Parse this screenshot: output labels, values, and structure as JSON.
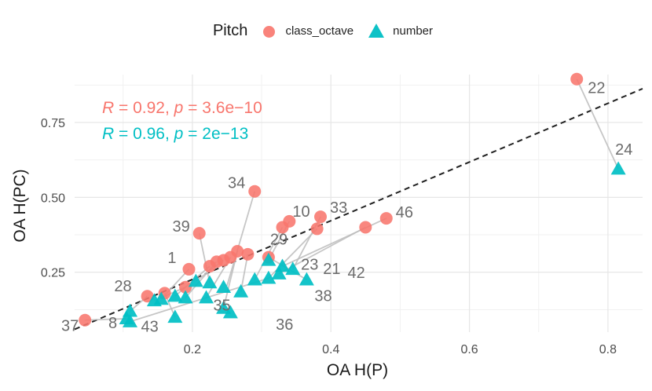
{
  "chart_data": {
    "type": "scatter",
    "xlabel": "OA H(P)",
    "ylabel": "OA H(PC)",
    "xlim": [
      0.03,
      0.85
    ],
    "ylim": [
      0.05,
      0.91
    ],
    "xticks": [
      0.2,
      0.4,
      0.6,
      0.8
    ],
    "yticks": [
      0.25,
      0.5,
      0.75
    ],
    "xtick_labels": [
      "0.2",
      "0.4",
      "0.6",
      "0.8"
    ],
    "ytick_labels": [
      "0.25",
      "0.50",
      "0.75"
    ],
    "grid": true,
    "legend": {
      "title": "Pitch",
      "position": "top",
      "entries": [
        "class_octave",
        "number"
      ]
    },
    "reference_line": {
      "type": "dashed",
      "slope": 0.98,
      "intercept": 0.03
    },
    "series": [
      {
        "name": "class_octave",
        "color": "#F8766D",
        "shape": "circle",
        "points": [
          {
            "label": "22",
            "x": 0.755,
            "y": 0.895
          },
          {
            "label": "34",
            "x": 0.29,
            "y": 0.52
          },
          {
            "label": "39",
            "x": 0.21,
            "y": 0.38
          },
          {
            "label": "10",
            "x": 0.34,
            "y": 0.42
          },
          {
            "label": "33",
            "x": 0.385,
            "y": 0.435
          },
          {
            "label": "46",
            "x": 0.48,
            "y": 0.43
          },
          {
            "label": "",
            "x": 0.45,
            "y": 0.4
          },
          {
            "label": "",
            "x": 0.33,
            "y": 0.4
          },
          {
            "label": "",
            "x": 0.38,
            "y": 0.395
          },
          {
            "label": "29",
            "x": 0.31,
            "y": 0.3
          },
          {
            "label": "",
            "x": 0.265,
            "y": 0.32
          },
          {
            "label": "",
            "x": 0.28,
            "y": 0.31
          },
          {
            "label": "",
            "x": 0.255,
            "y": 0.3
          },
          {
            "label": "",
            "x": 0.245,
            "y": 0.29
          },
          {
            "label": "",
            "x": 0.235,
            "y": 0.285
          },
          {
            "label": "",
            "x": 0.225,
            "y": 0.27
          },
          {
            "label": "1",
            "x": 0.195,
            "y": 0.26
          },
          {
            "label": "",
            "x": 0.19,
            "y": 0.2
          },
          {
            "label": "",
            "x": 0.16,
            "y": 0.18
          },
          {
            "label": "28",
            "x": 0.135,
            "y": 0.17
          },
          {
            "label": "37",
            "x": 0.045,
            "y": 0.09
          }
        ]
      },
      {
        "name": "number",
        "color": "#00BFC4",
        "shape": "triangle",
        "points": [
          {
            "label": "24",
            "x": 0.815,
            "y": 0.595
          },
          {
            "label": "42",
            "x": 0.345,
            "y": 0.26
          },
          {
            "label": "21",
            "x": 0.33,
            "y": 0.27
          },
          {
            "label": "23",
            "x": 0.325,
            "y": 0.245
          },
          {
            "label": "38",
            "x": 0.365,
            "y": 0.225
          },
          {
            "label": "",
            "x": 0.31,
            "y": 0.29
          },
          {
            "label": "",
            "x": 0.31,
            "y": 0.23
          },
          {
            "label": "",
            "x": 0.29,
            "y": 0.225
          },
          {
            "label": "",
            "x": 0.27,
            "y": 0.185
          },
          {
            "label": "",
            "x": 0.245,
            "y": 0.2
          },
          {
            "label": "",
            "x": 0.225,
            "y": 0.215
          },
          {
            "label": "",
            "x": 0.205,
            "y": 0.22
          },
          {
            "label": "",
            "x": 0.22,
            "y": 0.165
          },
          {
            "label": "",
            "x": 0.19,
            "y": 0.165
          },
          {
            "label": "",
            "x": 0.175,
            "y": 0.17
          },
          {
            "label": "",
            "x": 0.155,
            "y": 0.16
          },
          {
            "label": "",
            "x": 0.145,
            "y": 0.155
          },
          {
            "label": "35",
            "x": 0.245,
            "y": 0.13
          },
          {
            "label": "36",
            "x": 0.255,
            "y": 0.115
          },
          {
            "label": "",
            "x": 0.175,
            "y": 0.1
          },
          {
            "label": "28",
            "x": 0.11,
            "y": 0.12
          },
          {
            "label": "8",
            "x": 0.105,
            "y": 0.095
          },
          {
            "label": "43",
            "x": 0.11,
            "y": 0.085
          }
        ]
      }
    ],
    "connectors": [
      [
        0.755,
        0.895,
        0.815,
        0.595
      ],
      [
        0.29,
        0.52,
        0.25,
        0.205
      ],
      [
        0.21,
        0.38,
        0.225,
        0.215
      ],
      [
        0.34,
        0.42,
        0.31,
        0.29
      ],
      [
        0.385,
        0.435,
        0.345,
        0.26
      ],
      [
        0.48,
        0.43,
        0.33,
        0.27
      ],
      [
        0.45,
        0.4,
        0.325,
        0.245
      ],
      [
        0.38,
        0.395,
        0.31,
        0.23
      ],
      [
        0.33,
        0.4,
        0.29,
        0.225
      ],
      [
        0.31,
        0.3,
        0.365,
        0.225
      ],
      [
        0.265,
        0.32,
        0.245,
        0.13
      ],
      [
        0.28,
        0.31,
        0.27,
        0.185
      ],
      [
        0.255,
        0.3,
        0.22,
        0.165
      ],
      [
        0.245,
        0.29,
        0.205,
        0.22
      ],
      [
        0.235,
        0.285,
        0.19,
        0.165
      ],
      [
        0.225,
        0.27,
        0.175,
        0.17
      ],
      [
        0.195,
        0.26,
        0.155,
        0.16
      ],
      [
        0.19,
        0.2,
        0.145,
        0.155
      ],
      [
        0.16,
        0.18,
        0.175,
        0.1
      ],
      [
        0.135,
        0.17,
        0.11,
        0.12
      ],
      [
        0.045,
        0.09,
        0.105,
        0.095
      ],
      [
        0.31,
        0.23,
        0.11,
        0.085
      ],
      [
        0.255,
        0.115,
        0.245,
        0.13
      ]
    ],
    "annotations": [
      {
        "series": "class_octave",
        "R": "0.92",
        "p": "3.6e−10"
      },
      {
        "series": "number",
        "R": "0.96",
        "p": "2e−13"
      }
    ]
  }
}
